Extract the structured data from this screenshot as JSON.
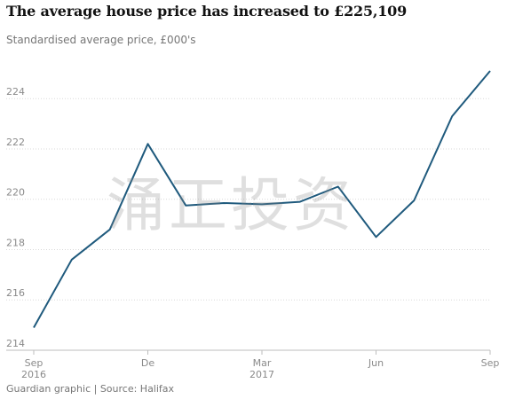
{
  "title": "The average house price has increased to £225,109",
  "subtitle": "Standardised average price, £000's",
  "footer": "Guardian graphic | Source: Halifax",
  "watermark": "涌正投资",
  "colors": {
    "line": "#1f5a7d",
    "grid": "#d9d9d9",
    "axis": "#bdbdbd",
    "label": "#8a8a8a"
  },
  "chart_data": {
    "type": "line",
    "title": "The average house price has increased to £225,109",
    "subtitle": "Standardised average price, £000's",
    "ylim": [
      214,
      225.1
    ],
    "yticks": [
      214,
      216,
      218,
      220,
      222,
      224
    ],
    "grid": "horizontal dotted",
    "x_ticks": [
      {
        "index": 0,
        "label": "Sep",
        "sublabel": "2016"
      },
      {
        "index": 3,
        "label": "De",
        "sublabel": ""
      },
      {
        "index": 6,
        "label": "Mar",
        "sublabel": "2017"
      },
      {
        "index": 9,
        "label": "Jun",
        "sublabel": ""
      },
      {
        "index": 12,
        "label": "Sep",
        "sublabel": ""
      }
    ],
    "series": [
      {
        "x": [
          "Sep 2016",
          "Oct 2016",
          "Nov 2016",
          "Dec 2016",
          "Jan 2017",
          "Feb 2017",
          "Mar 2017",
          "Apr 2017",
          "May 2017",
          "Jun 2017",
          "Jul 2017",
          "Aug 2017",
          "Sep 2017"
        ],
        "values": [
          214.9,
          217.6,
          218.8,
          222.2,
          219.75,
          219.85,
          219.8,
          219.9,
          220.5,
          218.5,
          219.95,
          223.3,
          225.1
        ]
      }
    ]
  }
}
